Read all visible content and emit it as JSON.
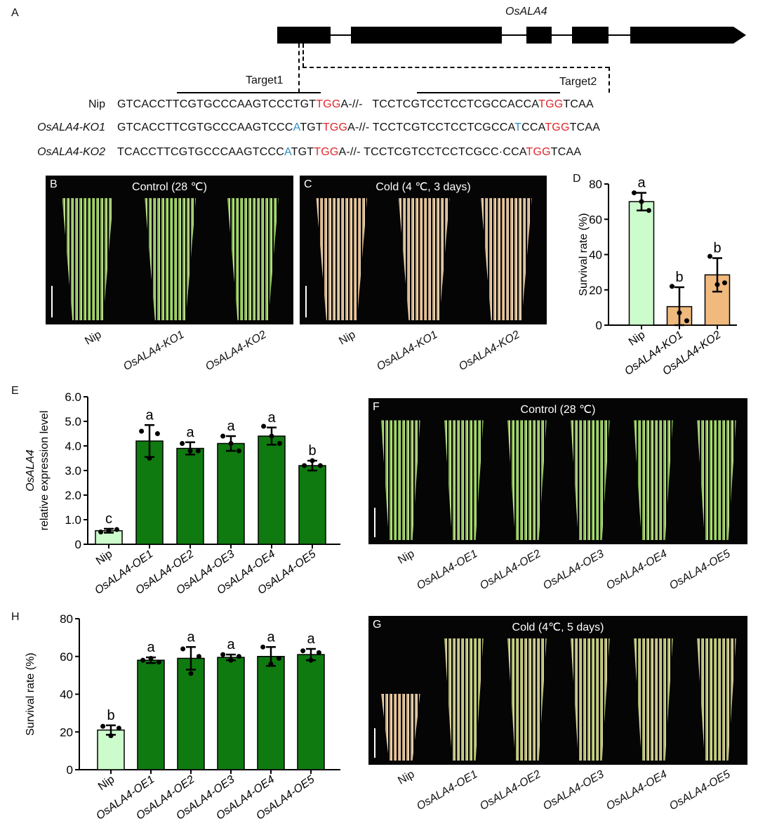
{
  "panel_labels": {
    "A": "A",
    "B": "B",
    "C": "C",
    "D": "D",
    "E": "E",
    "F": "F",
    "G": "G",
    "H": "H"
  },
  "gene": {
    "name": "OsALA4",
    "target1": "Target1",
    "target2": "Target2"
  },
  "sequences": [
    {
      "label": "Nip",
      "segments": [
        {
          "t": "GTCACCTTCGTGCCCAAGTCCCTGT",
          "c": "k"
        },
        {
          "t": "TGG",
          "c": "r"
        },
        {
          "t": "A-//-   TCCTCGTCCTCCTCGCCACCA",
          "c": "k"
        },
        {
          "t": "TGG",
          "c": "r"
        },
        {
          "t": "TCAA",
          "c": "k"
        }
      ]
    },
    {
      "label": "OsALA4-KO1",
      "segments": [
        {
          "t": "GTCACCTTCGTGCCCAAGTCCC",
          "c": "k"
        },
        {
          "t": "A",
          "c": "b"
        },
        {
          "t": "TGT",
          "c": "k"
        },
        {
          "t": "TGG",
          "c": "r"
        },
        {
          "t": "A-//- TCCTCGTCCTCCTCGCCA",
          "c": "k"
        },
        {
          "t": "T",
          "c": "b"
        },
        {
          "t": "CCA",
          "c": "k"
        },
        {
          "t": "TGG",
          "c": "r"
        },
        {
          "t": "TCAA",
          "c": "k"
        }
      ]
    },
    {
      "label": "OsALA4-KO2",
      "segments": [
        {
          "t": "TCACCTTCGTGCCCAAGTCCC",
          "c": "k"
        },
        {
          "t": "A",
          "c": "b"
        },
        {
          "t": "TGT",
          "c": "k"
        },
        {
          "t": "TGG",
          "c": "r"
        },
        {
          "t": "A-//- TCCTCGTCCTCCTCGCC·CCA",
          "c": "k"
        },
        {
          "t": "TGG",
          "c": "r"
        },
        {
          "t": "TCAA",
          "c": "k"
        }
      ]
    }
  ],
  "seq_colors": {
    "k": "#111111",
    "r": "#e0262b",
    "b": "#2a8fc0"
  },
  "photos": {
    "B": {
      "title": "Control (28 ℃)",
      "labels": [
        "Nip",
        "OsALA4-KO1",
        "OsALA4-KO2"
      ]
    },
    "C": {
      "title": "Cold (4 ℃, 3 days)",
      "labels": [
        "Nip",
        "OsALA4-KO1",
        "OsALA4-KO2"
      ]
    },
    "F": {
      "title": "Control (28 ℃)",
      "labels": [
        "Nip",
        "OsALA4-OE1",
        "OsALA4-OE2",
        "OsALA4-OE3",
        "OsALA4-OE4",
        "OsALA4-OE5"
      ]
    },
    "G": {
      "title": "Cold (4℃, 5 days)",
      "labels": [
        "Nip",
        "OsALA4-OE1",
        "OsALA4-OE2",
        "OsALA4-OE3",
        "OsALA4-OE4",
        "OsALA4-OE5"
      ]
    }
  },
  "chart_data": [
    {
      "id": "D",
      "type": "bar",
      "ylabel": "Survival rate (%)",
      "ylim": [
        0,
        80
      ],
      "yticks": [
        "0",
        "20",
        "40",
        "60",
        "80"
      ],
      "tickvals": [
        0,
        20,
        40,
        60,
        80
      ],
      "categories": [
        "Nip",
        "OsALA4-KO1",
        "OsALA4-KO2"
      ],
      "values": [
        70,
        10.5,
        28.5
      ],
      "errors": [
        5,
        11,
        9.5
      ],
      "points": [
        [
          75,
          70,
          65
        ],
        [
          22,
          7,
          2.5
        ],
        [
          39,
          23,
          24
        ]
      ],
      "letters": [
        "a",
        "b",
        "b"
      ],
      "colors": [
        "#ccfccc",
        "#f0b97e",
        "#f0b97e"
      ]
    },
    {
      "id": "E",
      "type": "bar",
      "ylabel": "relative expression level",
      "ylabel_italic": "OsALA4",
      "ylim": [
        0,
        6
      ],
      "yticks": [
        "0",
        "1.0",
        "2.0",
        "3.0",
        "4.0",
        "5.0",
        "6.0"
      ],
      "tickvals": [
        0,
        1,
        2,
        3,
        4,
        5,
        6
      ],
      "categories": [
        "Nip",
        "OsALA4-OE1",
        "OsALA4-OE2",
        "OsALA4-OE3",
        "OsALA4-OE4",
        "OsALA4-OE5"
      ],
      "values": [
        0.55,
        4.2,
        3.9,
        4.1,
        4.4,
        3.2
      ],
      "errors": [
        0.08,
        0.65,
        0.25,
        0.3,
        0.35,
        0.2
      ],
      "points": [
        [
          0.5,
          0.55,
          0.6
        ],
        [
          4.6,
          3.5,
          4.5
        ],
        [
          4.1,
          3.8,
          3.8
        ],
        [
          4.4,
          4.1,
          3.8
        ],
        [
          4.8,
          4.4,
          4.1
        ],
        [
          3.2,
          3.4,
          3.2
        ]
      ],
      "letters": [
        "c",
        "a",
        "a",
        "a",
        "a",
        "b"
      ],
      "colors": [
        "#ccfccc",
        "#0f7a0f",
        "#0f7a0f",
        "#0f7a0f",
        "#0f7a0f",
        "#0f7a0f"
      ]
    },
    {
      "id": "H",
      "type": "bar",
      "ylabel": "Survival rate (%)",
      "ylim": [
        0,
        80
      ],
      "yticks": [
        "0",
        "20",
        "40",
        "60",
        "80"
      ],
      "tickvals": [
        0,
        20,
        40,
        60,
        80
      ],
      "categories": [
        "Nip",
        "OsALA4-OE1",
        "OsALA4-OE2",
        "OsALA4-OE3",
        "OsALA4-OE4",
        "OsALA4-OE5"
      ],
      "values": [
        21,
        58,
        59,
        59.5,
        60,
        61
      ],
      "errors": [
        2.5,
        1.5,
        6,
        1.5,
        5,
        3
      ],
      "points": [
        [
          23,
          18,
          22
        ],
        [
          58,
          59,
          57
        ],
        [
          64,
          51,
          60
        ],
        [
          61,
          58,
          60
        ],
        [
          65,
          56,
          59
        ],
        [
          63,
          58,
          62
        ]
      ],
      "letters": [
        "b",
        "a",
        "a",
        "a",
        "a",
        "a"
      ],
      "colors": [
        "#ccfccc",
        "#0f7a0f",
        "#0f7a0f",
        "#0f7a0f",
        "#0f7a0f",
        "#0f7a0f"
      ]
    }
  ]
}
